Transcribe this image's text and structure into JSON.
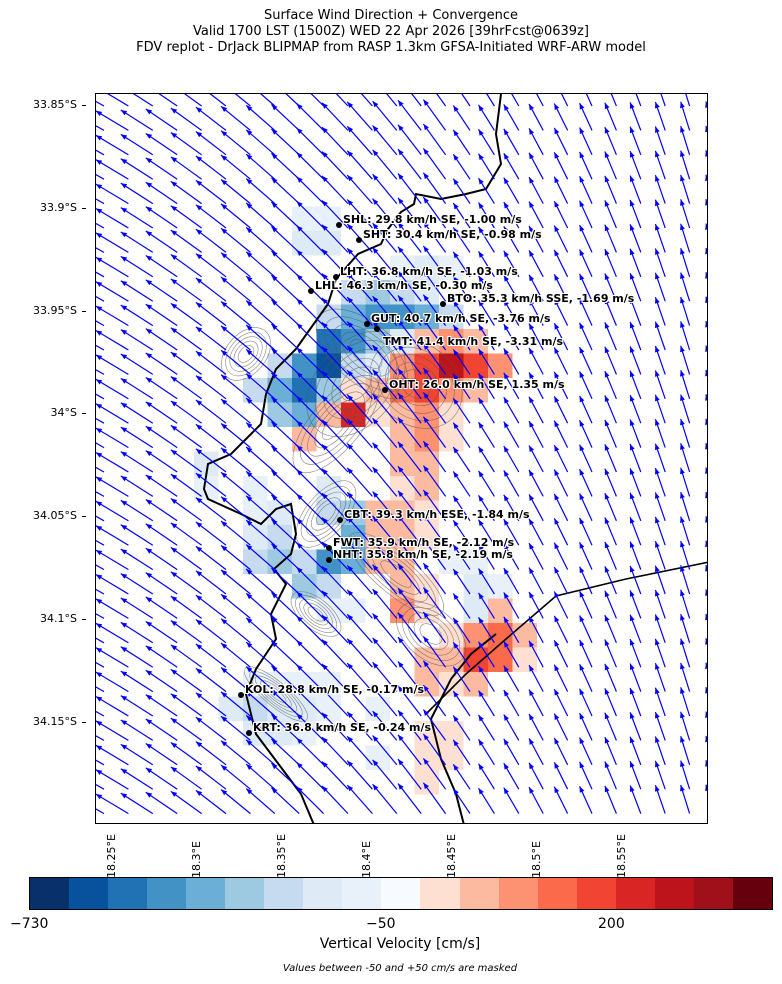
{
  "header": {
    "line1": "Surface Wind Direction + Convergence",
    "line2": "Valid 1700 LST (1500Z) WED 22 Apr 2026 [39hrFcst@0639z]",
    "line3": "FDV replot - DrJack BLIPMAP from RASP 1.3km GFSA-Initiated WRF-ARW model"
  },
  "axes": {
    "lat_ticks": [
      "33.85°S",
      "33.9°S",
      "33.95°S",
      "34°S",
      "34.05°S",
      "34.1°S",
      "34.15°S"
    ],
    "lon_ticks": [
      "18.25°E",
      "18.3°E",
      "18.35°E",
      "18.4°E",
      "18.45°E",
      "18.5°E",
      "18.55°E"
    ]
  },
  "stations": [
    {
      "label": "SHL: 29.8 km/h SE, -1.00 m/s"
    },
    {
      "label": "SHT: 30.4 km/h SE, -0.98 m/s"
    },
    {
      "label": "LHT: 36.8 km/h SE, -1.03 m/s"
    },
    {
      "label": "LHL: 46.3 km/h SE, -0.30 m/s"
    },
    {
      "label": "BTO: 35.3 km/h SSE, -1.69 m/s"
    },
    {
      "label": "GUT: 40.7 km/h SE, -3.76 m/s"
    },
    {
      "label": "TMT: 41.4 km/h SE, -3.31 m/s"
    },
    {
      "label": "OHT: 26.0 km/h SE, 1.35 m/s"
    },
    {
      "label": "CBT: 39.3 km/h ESE, -1.84 m/s"
    },
    {
      "label": "FWT: 35.9 km/h SE, -2.12 m/s"
    },
    {
      "label": "NHT: 35.8 km/h SE, -2.19 m/s"
    },
    {
      "label": "KOL: 28.8 km/h SE, -0.17 m/s"
    },
    {
      "label": "KRT: 36.8 km/h SE, -0.24 m/s"
    }
  ],
  "colorbar": {
    "ticks": [
      "−730",
      "−50",
      "200"
    ],
    "title": "Vertical Velocity [cm/s]",
    "note": "Values between -50 and +50 cm/s are masked",
    "colors": [
      "#08306b",
      "#08519c",
      "#2171b5",
      "#4292c6",
      "#6baed6",
      "#9ecae1",
      "#c6dbef",
      "#deebf7",
      "#e8f1fa",
      "#f7fbff",
      "#fee0d2",
      "#fcbba1",
      "#fc9272",
      "#fb6a4a",
      "#f14432",
      "#d92523",
      "#bc141a",
      "#a0101a",
      "#67000d"
    ]
  },
  "colors": {
    "wind_arrow": "#0000ff",
    "coastline": "#000000",
    "contour": "#555555"
  }
}
